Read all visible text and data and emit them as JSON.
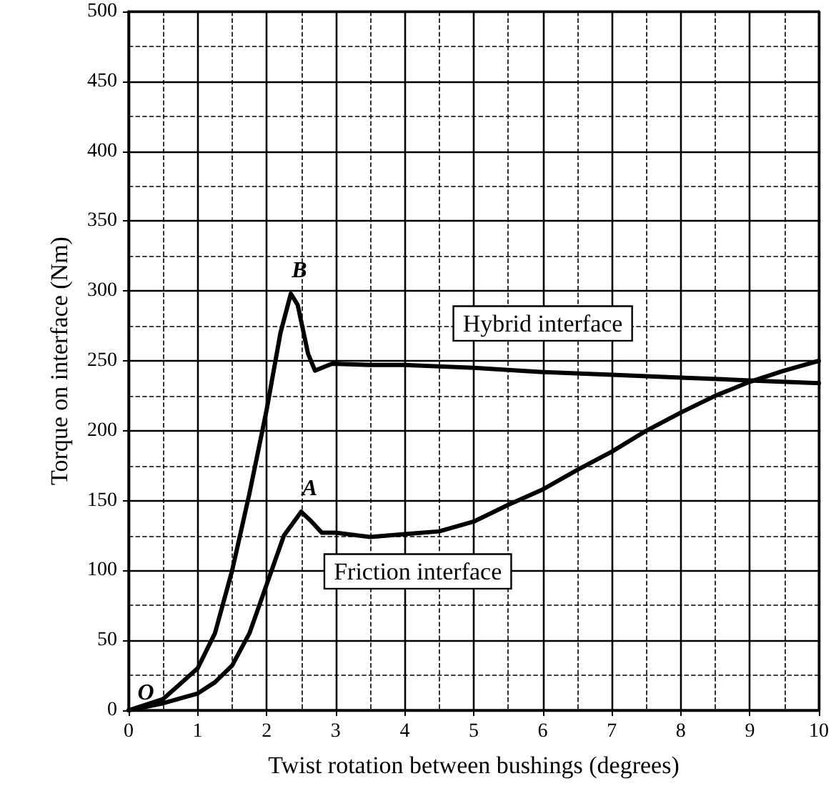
{
  "chart_data": {
    "type": "line",
    "xlabel": "Twist rotation between bushings (degrees)",
    "ylabel": "Torque on interface (Nm)",
    "xlim": [
      0,
      10
    ],
    "xticks": [
      0,
      1,
      2,
      3,
      4,
      5,
      6,
      7,
      8,
      9,
      10
    ],
    "ylim": [
      0,
      500
    ],
    "yticks": [
      0,
      50,
      100,
      150,
      200,
      250,
      300,
      350,
      400,
      450,
      500
    ],
    "grid": true,
    "legend": false,
    "marker": "none",
    "line_style": "solid",
    "series": [
      {
        "name": "Hybrid interface",
        "color": "#000000",
        "x": [
          0,
          0.5,
          1,
          1.25,
          1.5,
          1.75,
          2,
          2.2,
          2.35,
          2.45,
          2.6,
          2.7,
          2.8,
          2.95,
          3.5,
          4,
          5,
          6,
          7,
          8,
          9,
          10
        ],
        "values": [
          0,
          8,
          30,
          55,
          100,
          155,
          215,
          270,
          298,
          290,
          255,
          243,
          245,
          248,
          247,
          247,
          245,
          242,
          240,
          238,
          236,
          234
        ]
      },
      {
        "name": "Friction interface",
        "color": "#000000",
        "x": [
          0,
          0.5,
          1,
          1.25,
          1.5,
          1.75,
          2,
          2.25,
          2.5,
          2.65,
          2.8,
          3,
          3.5,
          4,
          4.5,
          5,
          5.5,
          6,
          6.5,
          7,
          7.5,
          8,
          8.5,
          9,
          9.5,
          10
        ],
        "values": [
          0,
          5,
          12,
          20,
          32,
          55,
          90,
          125,
          142,
          135,
          127,
          127,
          124,
          126,
          128,
          135,
          147,
          158,
          172,
          185,
          200,
          213,
          225,
          235,
          243,
          250
        ]
      }
    ],
    "annotations": [
      {
        "text": "O",
        "x": 0,
        "y": 0
      },
      {
        "text": "B",
        "x": 2.35,
        "y": 298
      },
      {
        "text": "A",
        "x": 2.5,
        "y": 142
      }
    ]
  }
}
